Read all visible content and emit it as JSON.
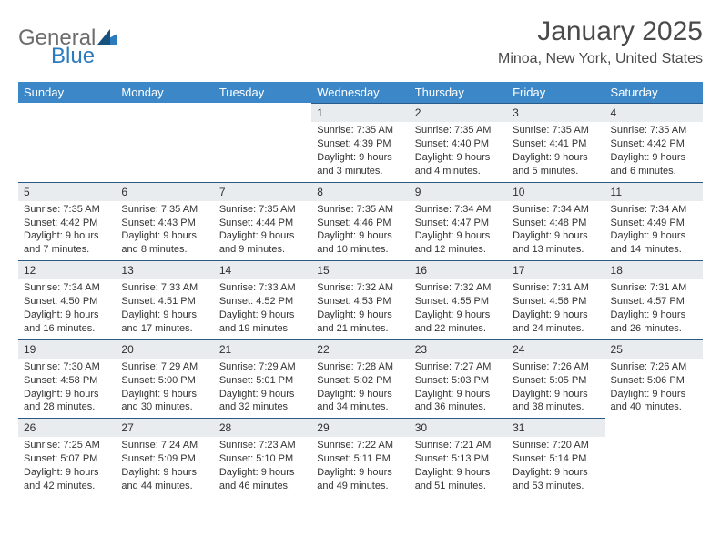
{
  "brand": {
    "general": "General",
    "blue": "Blue"
  },
  "title": "January 2025",
  "location": "Minoa, New York, United States",
  "colors": {
    "header_bg": "#3b87c8",
    "header_text": "#ffffff",
    "day_bar_bg": "#e9ecef",
    "day_bar_border": "#2c5a86",
    "brand_gray": "#6d6d6d",
    "brand_blue": "#2b7bbd",
    "text": "#333333"
  },
  "fonts": {
    "title_size": 30,
    "location_size": 16,
    "dayheader_size": 13,
    "daynum_size": 12,
    "body_size": 11
  },
  "day_headers": [
    "Sunday",
    "Monday",
    "Tuesday",
    "Wednesday",
    "Thursday",
    "Friday",
    "Saturday"
  ],
  "weeks": [
    [
      null,
      null,
      null,
      {
        "n": "1",
        "sr": "Sunrise: 7:35 AM",
        "ss": "Sunset: 4:39 PM",
        "d1": "Daylight: 9 hours",
        "d2": "and 3 minutes."
      },
      {
        "n": "2",
        "sr": "Sunrise: 7:35 AM",
        "ss": "Sunset: 4:40 PM",
        "d1": "Daylight: 9 hours",
        "d2": "and 4 minutes."
      },
      {
        "n": "3",
        "sr": "Sunrise: 7:35 AM",
        "ss": "Sunset: 4:41 PM",
        "d1": "Daylight: 9 hours",
        "d2": "and 5 minutes."
      },
      {
        "n": "4",
        "sr": "Sunrise: 7:35 AM",
        "ss": "Sunset: 4:42 PM",
        "d1": "Daylight: 9 hours",
        "d2": "and 6 minutes."
      }
    ],
    [
      {
        "n": "5",
        "sr": "Sunrise: 7:35 AM",
        "ss": "Sunset: 4:42 PM",
        "d1": "Daylight: 9 hours",
        "d2": "and 7 minutes."
      },
      {
        "n": "6",
        "sr": "Sunrise: 7:35 AM",
        "ss": "Sunset: 4:43 PM",
        "d1": "Daylight: 9 hours",
        "d2": "and 8 minutes."
      },
      {
        "n": "7",
        "sr": "Sunrise: 7:35 AM",
        "ss": "Sunset: 4:44 PM",
        "d1": "Daylight: 9 hours",
        "d2": "and 9 minutes."
      },
      {
        "n": "8",
        "sr": "Sunrise: 7:35 AM",
        "ss": "Sunset: 4:46 PM",
        "d1": "Daylight: 9 hours",
        "d2": "and 10 minutes."
      },
      {
        "n": "9",
        "sr": "Sunrise: 7:34 AM",
        "ss": "Sunset: 4:47 PM",
        "d1": "Daylight: 9 hours",
        "d2": "and 12 minutes."
      },
      {
        "n": "10",
        "sr": "Sunrise: 7:34 AM",
        "ss": "Sunset: 4:48 PM",
        "d1": "Daylight: 9 hours",
        "d2": "and 13 minutes."
      },
      {
        "n": "11",
        "sr": "Sunrise: 7:34 AM",
        "ss": "Sunset: 4:49 PM",
        "d1": "Daylight: 9 hours",
        "d2": "and 14 minutes."
      }
    ],
    [
      {
        "n": "12",
        "sr": "Sunrise: 7:34 AM",
        "ss": "Sunset: 4:50 PM",
        "d1": "Daylight: 9 hours",
        "d2": "and 16 minutes."
      },
      {
        "n": "13",
        "sr": "Sunrise: 7:33 AM",
        "ss": "Sunset: 4:51 PM",
        "d1": "Daylight: 9 hours",
        "d2": "and 17 minutes."
      },
      {
        "n": "14",
        "sr": "Sunrise: 7:33 AM",
        "ss": "Sunset: 4:52 PM",
        "d1": "Daylight: 9 hours",
        "d2": "and 19 minutes."
      },
      {
        "n": "15",
        "sr": "Sunrise: 7:32 AM",
        "ss": "Sunset: 4:53 PM",
        "d1": "Daylight: 9 hours",
        "d2": "and 21 minutes."
      },
      {
        "n": "16",
        "sr": "Sunrise: 7:32 AM",
        "ss": "Sunset: 4:55 PM",
        "d1": "Daylight: 9 hours",
        "d2": "and 22 minutes."
      },
      {
        "n": "17",
        "sr": "Sunrise: 7:31 AM",
        "ss": "Sunset: 4:56 PM",
        "d1": "Daylight: 9 hours",
        "d2": "and 24 minutes."
      },
      {
        "n": "18",
        "sr": "Sunrise: 7:31 AM",
        "ss": "Sunset: 4:57 PM",
        "d1": "Daylight: 9 hours",
        "d2": "and 26 minutes."
      }
    ],
    [
      {
        "n": "19",
        "sr": "Sunrise: 7:30 AM",
        "ss": "Sunset: 4:58 PM",
        "d1": "Daylight: 9 hours",
        "d2": "and 28 minutes."
      },
      {
        "n": "20",
        "sr": "Sunrise: 7:29 AM",
        "ss": "Sunset: 5:00 PM",
        "d1": "Daylight: 9 hours",
        "d2": "and 30 minutes."
      },
      {
        "n": "21",
        "sr": "Sunrise: 7:29 AM",
        "ss": "Sunset: 5:01 PM",
        "d1": "Daylight: 9 hours",
        "d2": "and 32 minutes."
      },
      {
        "n": "22",
        "sr": "Sunrise: 7:28 AM",
        "ss": "Sunset: 5:02 PM",
        "d1": "Daylight: 9 hours",
        "d2": "and 34 minutes."
      },
      {
        "n": "23",
        "sr": "Sunrise: 7:27 AM",
        "ss": "Sunset: 5:03 PM",
        "d1": "Daylight: 9 hours",
        "d2": "and 36 minutes."
      },
      {
        "n": "24",
        "sr": "Sunrise: 7:26 AM",
        "ss": "Sunset: 5:05 PM",
        "d1": "Daylight: 9 hours",
        "d2": "and 38 minutes."
      },
      {
        "n": "25",
        "sr": "Sunrise: 7:26 AM",
        "ss": "Sunset: 5:06 PM",
        "d1": "Daylight: 9 hours",
        "d2": "and 40 minutes."
      }
    ],
    [
      {
        "n": "26",
        "sr": "Sunrise: 7:25 AM",
        "ss": "Sunset: 5:07 PM",
        "d1": "Daylight: 9 hours",
        "d2": "and 42 minutes."
      },
      {
        "n": "27",
        "sr": "Sunrise: 7:24 AM",
        "ss": "Sunset: 5:09 PM",
        "d1": "Daylight: 9 hours",
        "d2": "and 44 minutes."
      },
      {
        "n": "28",
        "sr": "Sunrise: 7:23 AM",
        "ss": "Sunset: 5:10 PM",
        "d1": "Daylight: 9 hours",
        "d2": "and 46 minutes."
      },
      {
        "n": "29",
        "sr": "Sunrise: 7:22 AM",
        "ss": "Sunset: 5:11 PM",
        "d1": "Daylight: 9 hours",
        "d2": "and 49 minutes."
      },
      {
        "n": "30",
        "sr": "Sunrise: 7:21 AM",
        "ss": "Sunset: 5:13 PM",
        "d1": "Daylight: 9 hours",
        "d2": "and 51 minutes."
      },
      {
        "n": "31",
        "sr": "Sunrise: 7:20 AM",
        "ss": "Sunset: 5:14 PM",
        "d1": "Daylight: 9 hours",
        "d2": "and 53 minutes."
      },
      null
    ]
  ]
}
